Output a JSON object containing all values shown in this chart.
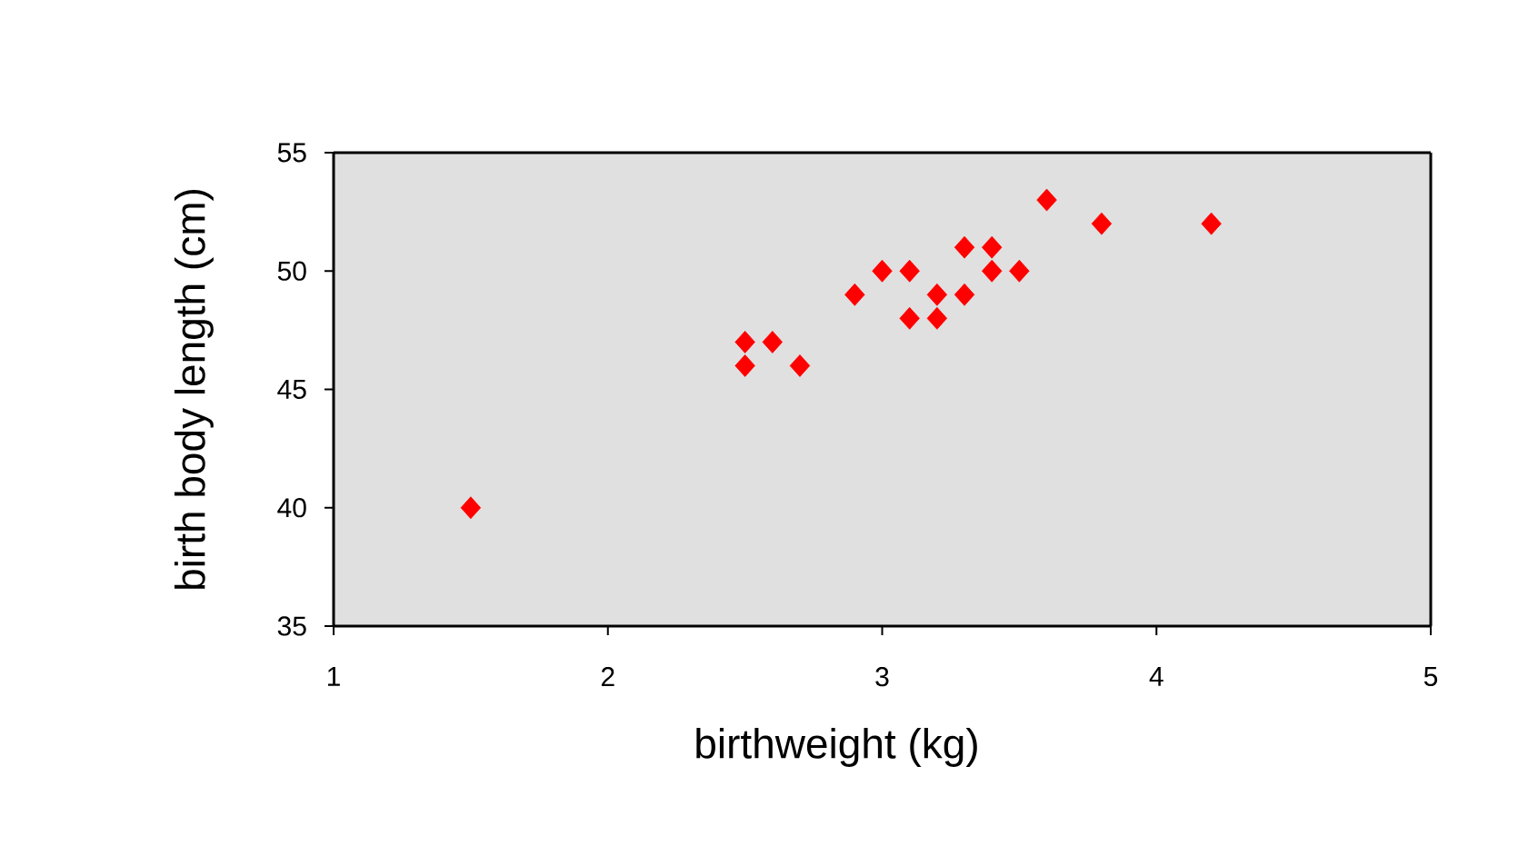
{
  "chart_data": {
    "type": "scatter",
    "xlabel": "birthweight (kg)",
    "ylabel": "birth body length (cm)",
    "x": [
      1.5,
      2.5,
      2.5,
      2.6,
      2.7,
      2.9,
      3.0,
      3.1,
      3.1,
      3.2,
      3.2,
      3.3,
      3.3,
      3.4,
      3.4,
      3.5,
      3.6,
      3.8,
      4.2
    ],
    "values": [
      40,
      47,
      46,
      47,
      46,
      49,
      50,
      50,
      48,
      49,
      48,
      51,
      49,
      51,
      50,
      50,
      53,
      52,
      52
    ],
    "color": "#ff0000",
    "marker": "diamond",
    "grid": false,
    "xlim": [
      1,
      5
    ],
    "xticks": [
      1,
      2,
      3,
      4,
      5
    ],
    "ylim": [
      35,
      55
    ],
    "yticks": [
      35,
      40,
      45,
      50,
      55
    ]
  }
}
